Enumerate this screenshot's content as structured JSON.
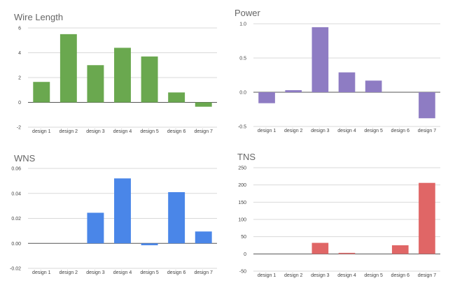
{
  "chart_data": [
    {
      "type": "bar",
      "title": "Wire Length",
      "color": "#6aa84f",
      "categories": [
        "design 1",
        "design 2",
        "design 3",
        "design 4",
        "design 5",
        "design 6",
        "design 7"
      ],
      "values": [
        1.65,
        5.5,
        3.0,
        4.4,
        3.7,
        0.8,
        -0.35
      ],
      "yticks": [
        "6",
        "4",
        "2",
        "0",
        "-2"
      ],
      "tick_values": [
        6,
        4,
        2,
        0,
        -2
      ],
      "ylim": [
        -2,
        6
      ],
      "grid": true,
      "xlabel": "",
      "ylabel": ""
    },
    {
      "type": "bar",
      "title": "Power",
      "color": "#8e7cc3",
      "categories": [
        "design 1",
        "design 2",
        "design 3",
        "design 4",
        "design 5",
        "design 6",
        "design 7"
      ],
      "values": [
        -0.16,
        0.03,
        0.95,
        0.29,
        0.17,
        0.0,
        -0.38
      ],
      "yticks": [
        "1.0",
        "0.5",
        "0.0",
        "-0.5"
      ],
      "tick_values": [
        1.0,
        0.5,
        0.0,
        -0.5
      ],
      "ylim": [
        -0.5,
        1.0
      ],
      "grid": true,
      "xlabel": "",
      "ylabel": ""
    },
    {
      "type": "bar",
      "title": "WNS",
      "color": "#4a86e8",
      "categories": [
        "design 1",
        "design 2",
        "design 3",
        "design 4",
        "design 5",
        "design 6",
        "design 7"
      ],
      "values": [
        0.0,
        0.0,
        0.0245,
        0.052,
        -0.0015,
        0.041,
        0.0095
      ],
      "yticks": [
        "0.06",
        "0.04",
        "0.02",
        "0.00",
        "-0.02"
      ],
      "tick_values": [
        0.06,
        0.04,
        0.02,
        0.0,
        -0.02
      ],
      "ylim": [
        -0.02,
        0.06
      ],
      "grid": true,
      "xlabel": "",
      "ylabel": ""
    },
    {
      "type": "bar",
      "title": "TNS",
      "color": "#e06666",
      "categories": [
        "design 1",
        "design 2",
        "design 3",
        "design 4",
        "design 5",
        "design 6",
        "design 7"
      ],
      "values": [
        0,
        0,
        32,
        3,
        0,
        25,
        206
      ],
      "yticks": [
        "250",
        "200",
        "150",
        "100",
        "50",
        "0",
        "-50"
      ],
      "tick_values": [
        250,
        200,
        150,
        100,
        50,
        0,
        -50
      ],
      "ylim": [
        -50,
        250
      ],
      "grid": true,
      "xlabel": "",
      "ylabel": ""
    }
  ]
}
